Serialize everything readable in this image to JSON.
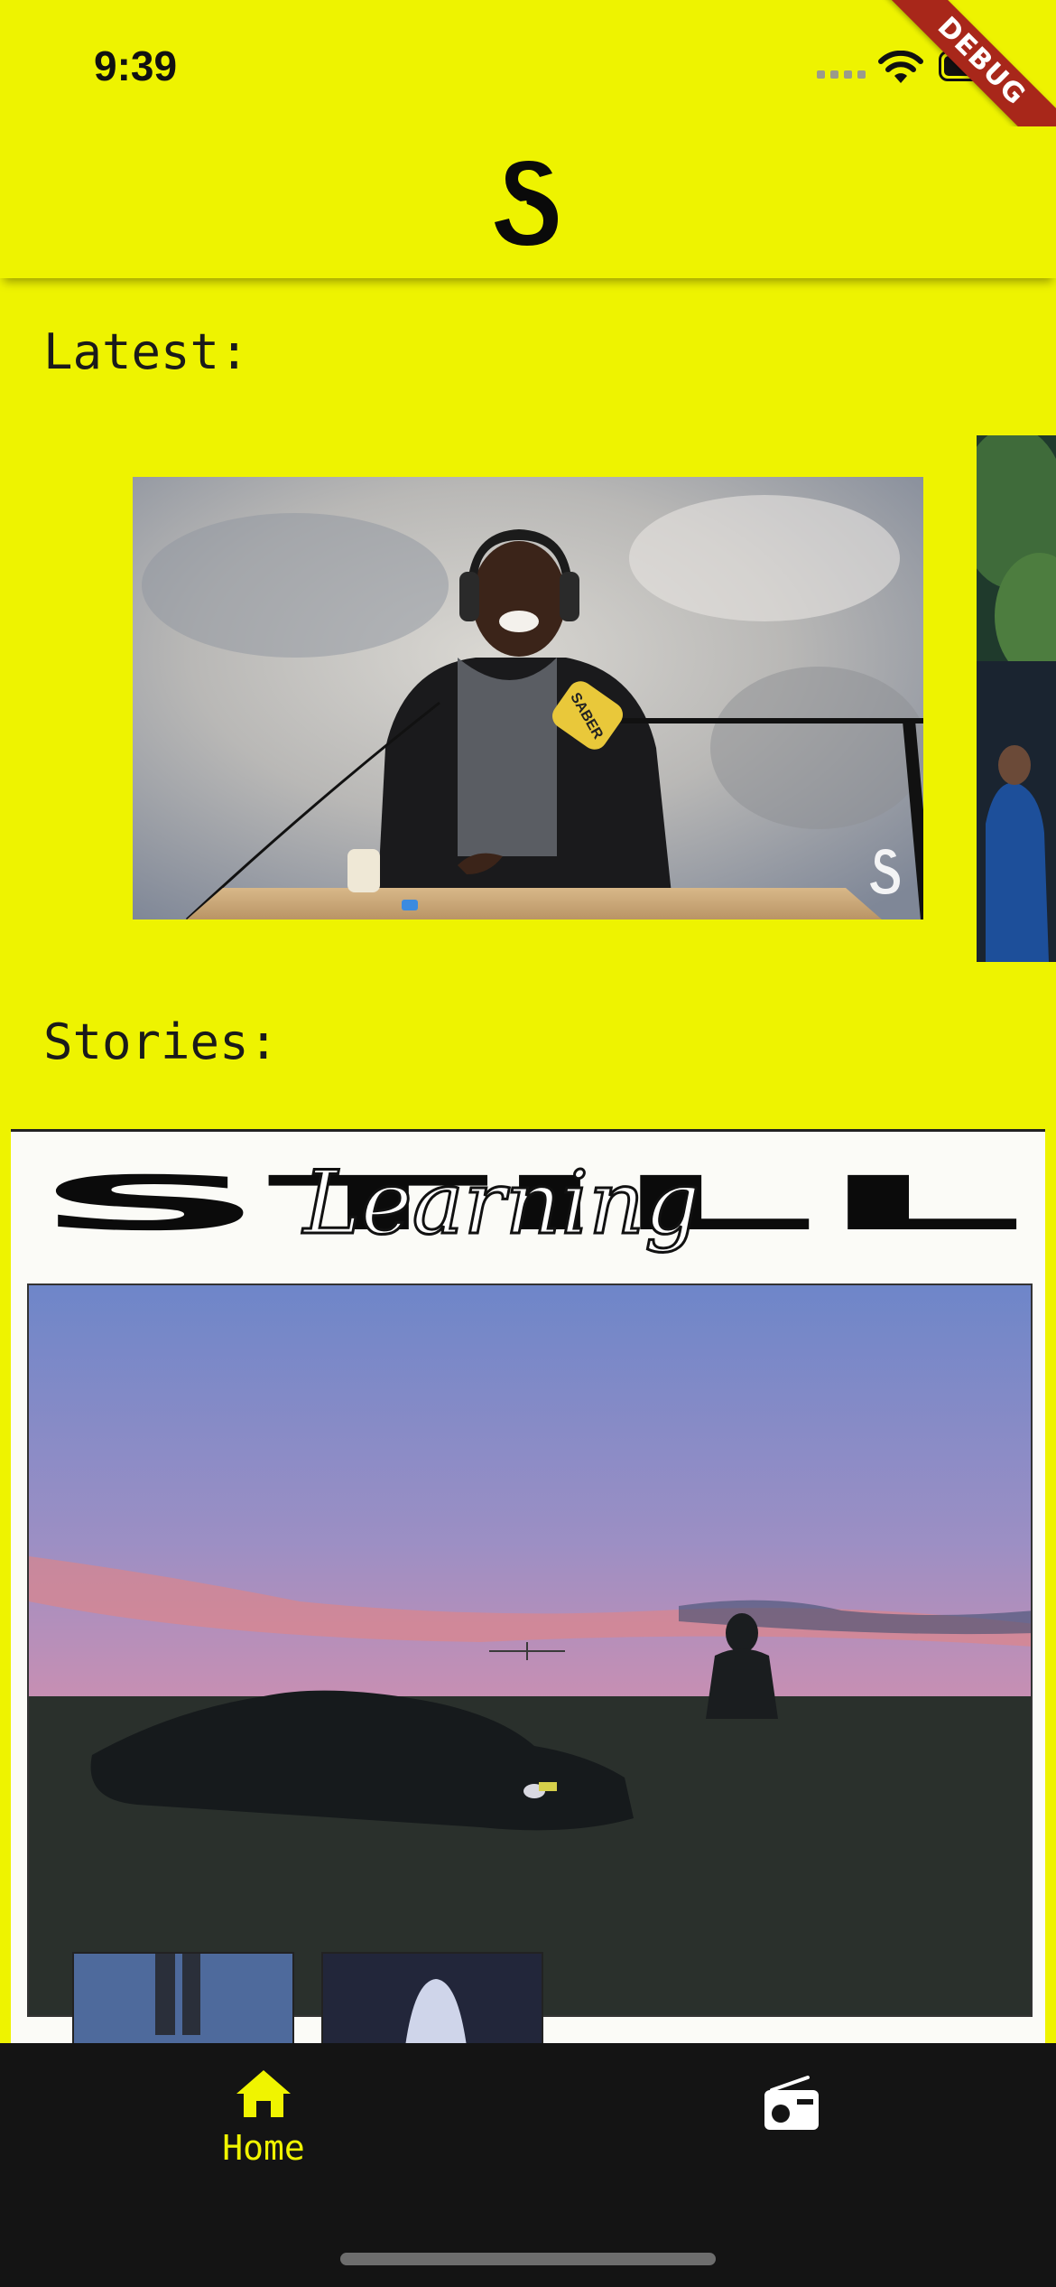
{
  "status_bar": {
    "time": "9:39",
    "debug_label": "DEBUG"
  },
  "app_bar": {
    "logo_icon": "saber-s-logo-icon"
  },
  "sections": {
    "latest": {
      "title": "Latest:"
    },
    "stories": {
      "title": "Stories:"
    }
  },
  "latest_items": [
    {
      "name": "video-performer-singing",
      "watermark_icon": "saber-watermark-icon",
      "mic_label": "SABER"
    },
    {
      "name": "video-outdoor-preview"
    }
  ],
  "stories_items": [
    {
      "name": "story-still-learning",
      "headline_block": "STILL",
      "headline_script": "Learning"
    }
  ],
  "bottom_nav": {
    "active": "home",
    "items": [
      {
        "id": "home",
        "label": "Home",
        "icon": "home-icon"
      },
      {
        "id": "radio",
        "label": "",
        "icon": "radio-icon"
      }
    ]
  },
  "colors": {
    "brand_yellow": "#eef300",
    "nav_background": "#141414"
  }
}
